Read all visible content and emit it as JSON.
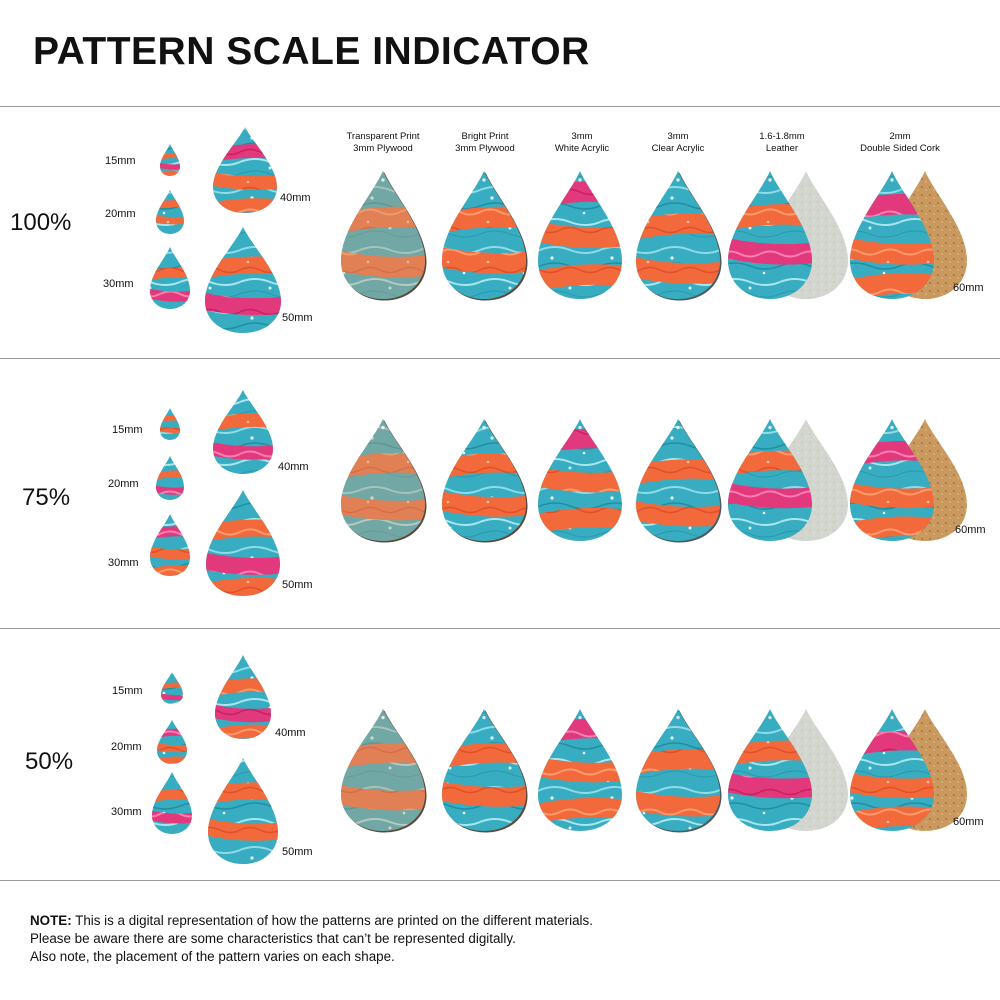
{
  "title": "PATTERN SCALE INDICATOR",
  "materials": [
    "Transparent Print\n3mm Plywood",
    "Bright Print\n3mm Plywood",
    "3mm\nWhite Acrylic",
    "3mm\nClear Acrylic",
    "1.6-1.8mm\nLeather",
    "2mm\nDouble Sided Cork"
  ],
  "sections": [
    {
      "scale": "100%",
      "sizes": [
        "15mm",
        "20mm",
        "30mm",
        "40mm",
        "50mm"
      ],
      "large_size": "60mm"
    },
    {
      "scale": "75%",
      "sizes": [
        "15mm",
        "20mm",
        "30mm",
        "40mm",
        "50mm"
      ],
      "large_size": "60mm"
    },
    {
      "scale": "50%",
      "sizes": [
        "15mm",
        "20mm",
        "30mm",
        "40mm",
        "50mm"
      ],
      "large_size": "60mm"
    }
  ],
  "note": {
    "label": "NOTE:",
    "line1": " This is a digital representation of how the patterns are printed on the different materials.",
    "line2": "Please be aware there are some characteristics that can’t be represented digitally.",
    "line3": "Also note, the placement of the pattern varies on each shape."
  },
  "colors": {
    "teal": "#3fb1c3",
    "orange": "#f26a3c",
    "pink": "#e23a7e",
    "wood": "#5b4a3a",
    "leather_back": "#d4d6d0",
    "cork": "#c89a62"
  }
}
